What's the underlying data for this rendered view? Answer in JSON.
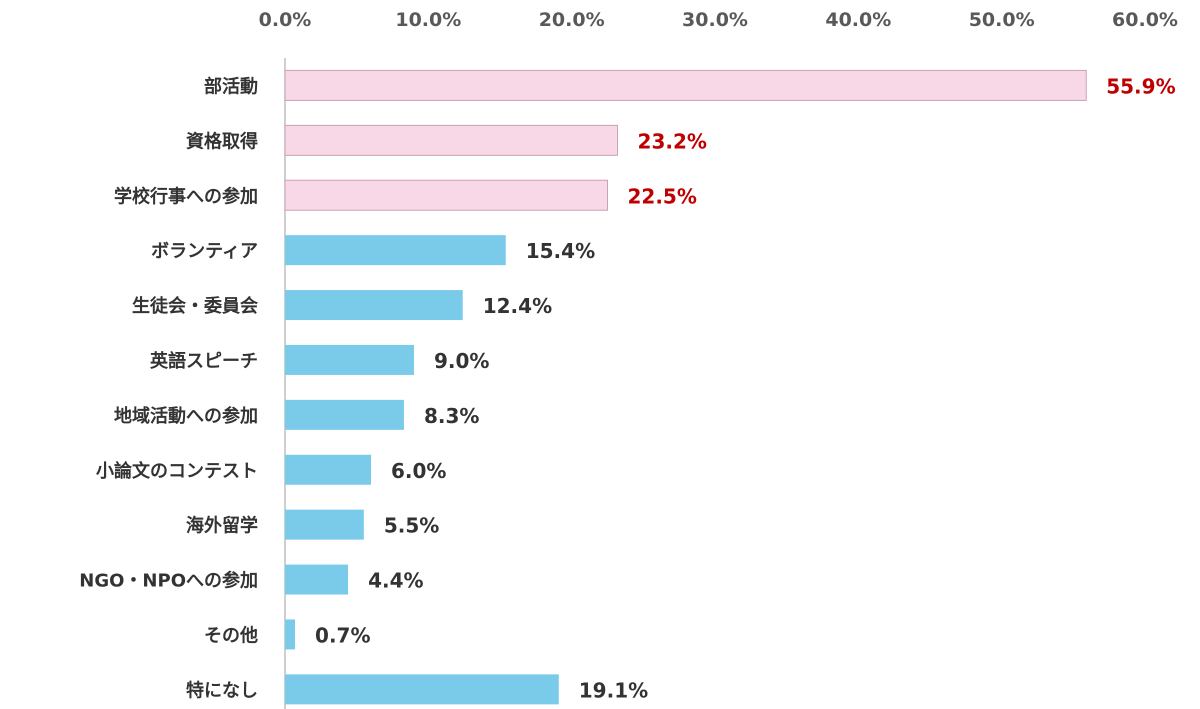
{
  "chart_data": {
    "type": "bar",
    "orientation": "horizontal",
    "categories": [
      "部活動",
      "資格取得",
      "学校行事への参加",
      "ボランティア",
      "生徒会・委員会",
      "英語スピーチ",
      "地域活動への参加",
      "小論文のコンテスト",
      "海外留学",
      "NGO・NPOへの参加",
      "その他",
      "特になし"
    ],
    "values": [
      55.9,
      23.2,
      22.5,
      15.4,
      12.4,
      9.0,
      8.3,
      6.0,
      5.5,
      4.4,
      0.7,
      19.1
    ],
    "value_labels": [
      "55.9%",
      "23.2%",
      "22.5%",
      "15.4%",
      "12.4%",
      "9.0%",
      "8.3%",
      "6.0%",
      "5.5%",
      "4.4%",
      "0.7%",
      "19.1%"
    ],
    "xlim": [
      0,
      60
    ],
    "x_ticks": [
      0,
      10,
      20,
      30,
      40,
      50,
      60
    ],
    "x_tick_labels": [
      "0.0%",
      "10.0%",
      "20.0%",
      "30.0%",
      "40.0%",
      "50.0%",
      "60.0%"
    ],
    "x_axis_position": "top",
    "grid": false,
    "highlighted_count": 3,
    "colors": {
      "highlight_bar": "#F8D7E6",
      "highlight_bar_border": "#C9A3B5",
      "highlight_label": "#C00000",
      "bar": "#7ACBEA",
      "label": "#333333",
      "tick_label": "#595959",
      "axis": "#BFBFBF"
    }
  }
}
